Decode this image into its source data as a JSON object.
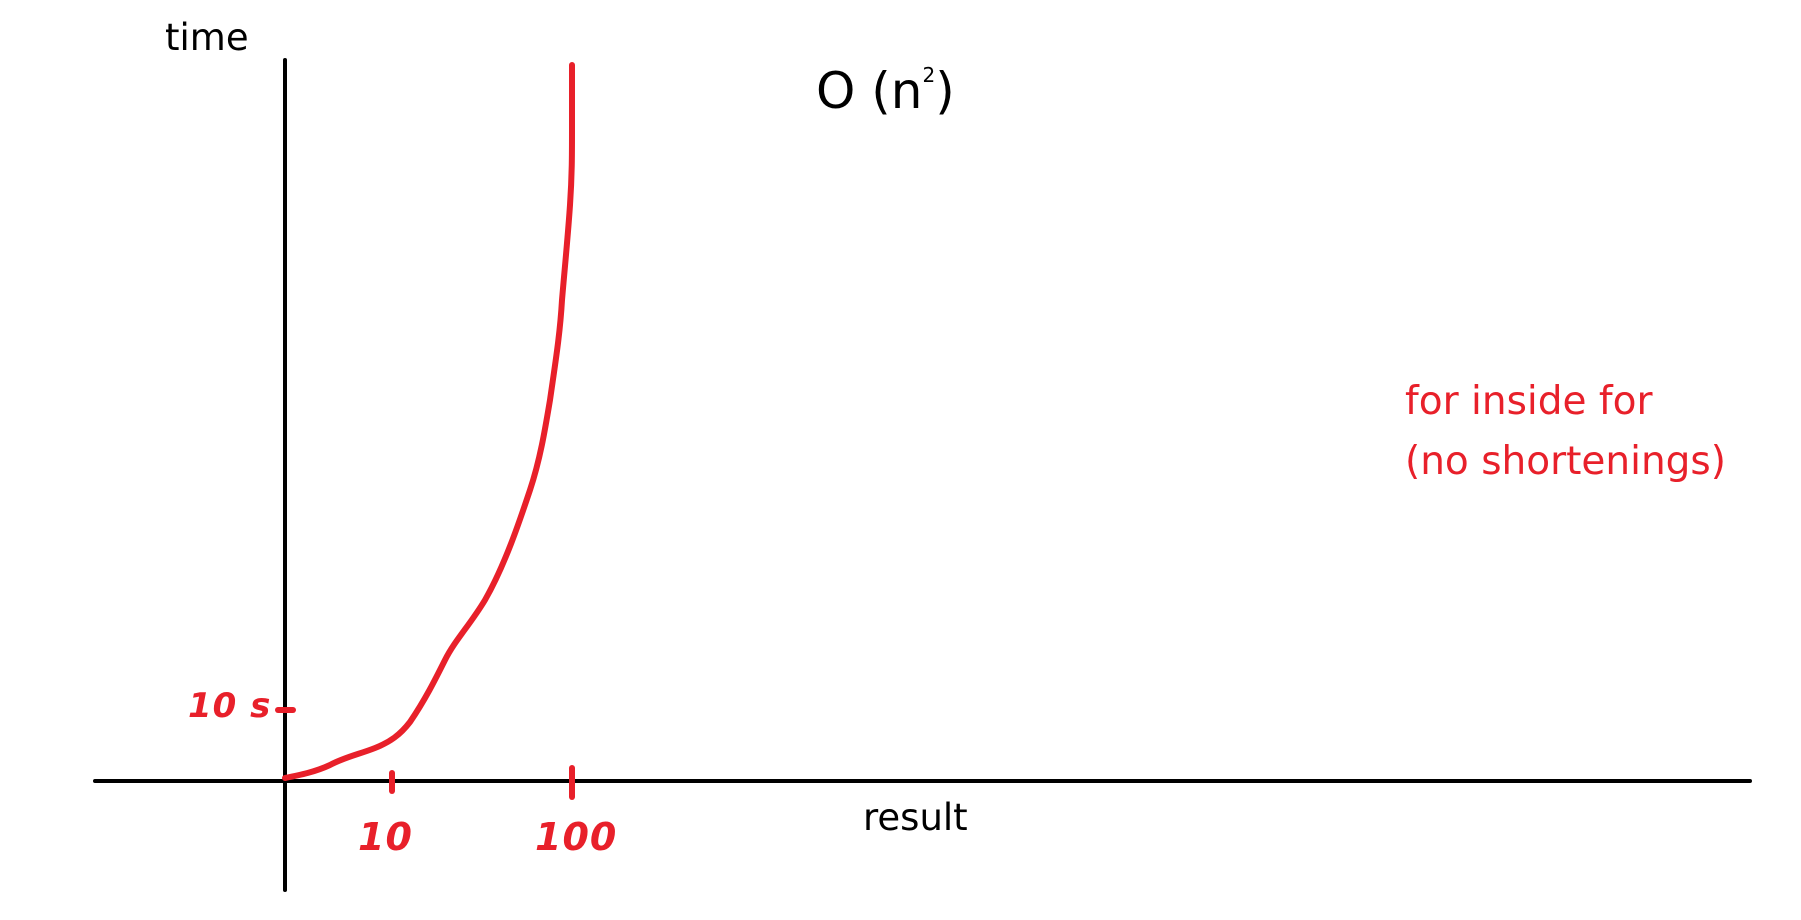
{
  "title": {
    "prefix": "O (n",
    "superscript": "2",
    "suffix": ")"
  },
  "axes": {
    "y_label": "time",
    "x_label": "result"
  },
  "ticks": {
    "x": [
      "10",
      "100"
    ],
    "y": [
      "10 s"
    ]
  },
  "note": {
    "line1": "for inside for",
    "line2": "(no shortenings)"
  },
  "colors": {
    "ink": "#000000",
    "curve": "#e8202a",
    "note": "#e8202a"
  }
}
